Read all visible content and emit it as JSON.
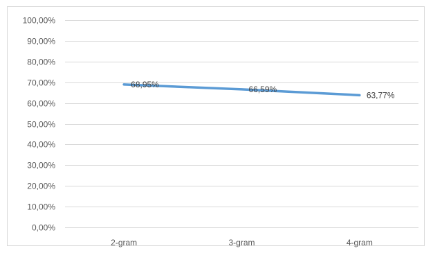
{
  "chart_data": {
    "type": "line",
    "categories": [
      "2-gram",
      "3-gram",
      "4-gram"
    ],
    "series": [
      {
        "values": [
          68.95,
          66.59,
          63.77
        ],
        "data_labels": [
          "68,95%",
          "66,59%",
          "63,77%"
        ],
        "color": "#5b9bd5"
      }
    ],
    "ylim": [
      0,
      100
    ],
    "yticks": [
      {
        "value": 0,
        "label": "0,00%"
      },
      {
        "value": 10,
        "label": "10,00%"
      },
      {
        "value": 20,
        "label": "20,00%"
      },
      {
        "value": 30,
        "label": "30,00%"
      },
      {
        "value": 40,
        "label": "40,00%"
      },
      {
        "value": 50,
        "label": "50,00%"
      },
      {
        "value": 60,
        "label": "60,00%"
      },
      {
        "value": 70,
        "label": "70,00%"
      },
      {
        "value": 80,
        "label": "80,00%"
      },
      {
        "value": 90,
        "label": "90,00%"
      },
      {
        "value": 100,
        "label": "100,00%"
      }
    ],
    "grid": true,
    "legend": "none",
    "gridline_color": "#d9d9d9",
    "text_color": "#595959"
  }
}
